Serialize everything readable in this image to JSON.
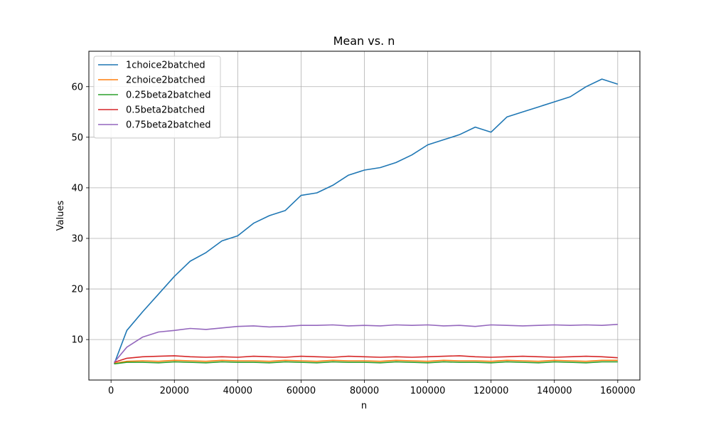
{
  "chart_data": {
    "type": "line",
    "title": "Mean vs. n",
    "xlabel": "n",
    "ylabel": "Values",
    "xlim": [
      -7000,
      167000
    ],
    "ylim": [
      2,
      67
    ],
    "xticks": [
      0,
      20000,
      40000,
      60000,
      80000,
      100000,
      120000,
      140000,
      160000
    ],
    "yticks": [
      10,
      20,
      30,
      40,
      50,
      60
    ],
    "grid": true,
    "legend_position": "top-left",
    "x": [
      1000,
      5000,
      10000,
      15000,
      20000,
      25000,
      30000,
      35000,
      40000,
      45000,
      50000,
      55000,
      60000,
      65000,
      70000,
      75000,
      80000,
      85000,
      90000,
      95000,
      100000,
      105000,
      110000,
      115000,
      120000,
      125000,
      130000,
      135000,
      140000,
      145000,
      150000,
      155000,
      160000
    ],
    "series": [
      {
        "name": "1choice2batched",
        "color": "#1f77b4",
        "values": [
          5.2,
          11.8,
          15.5,
          19.0,
          22.5,
          25.5,
          27.2,
          29.5,
          30.5,
          33.0,
          34.5,
          35.5,
          38.5,
          39.0,
          40.5,
          42.5,
          43.5,
          44.0,
          45.0,
          46.5,
          48.5,
          49.5,
          50.5,
          52.0,
          51.0,
          54.0,
          55.0,
          56.0,
          57.0,
          58.0,
          60.0,
          61.5,
          60.5
        ]
      },
      {
        "name": "2choice2batched",
        "color": "#ff7f0e",
        "values": [
          5.3,
          5.7,
          5.8,
          5.7,
          5.9,
          5.8,
          5.7,
          5.9,
          5.8,
          5.8,
          5.7,
          5.9,
          5.8,
          5.7,
          5.9,
          5.8,
          5.8,
          5.7,
          5.9,
          5.8,
          5.7,
          5.9,
          5.8,
          5.8,
          5.7,
          5.9,
          5.8,
          5.7,
          5.9,
          5.8,
          5.7,
          5.9,
          5.9
        ]
      },
      {
        "name": "0.25beta2batched",
        "color": "#2ca02c",
        "values": [
          5.2,
          5.5,
          5.5,
          5.4,
          5.6,
          5.5,
          5.4,
          5.6,
          5.5,
          5.5,
          5.4,
          5.6,
          5.5,
          5.4,
          5.6,
          5.5,
          5.5,
          5.4,
          5.6,
          5.5,
          5.4,
          5.6,
          5.5,
          5.5,
          5.4,
          5.6,
          5.5,
          5.4,
          5.6,
          5.5,
          5.4,
          5.6,
          5.6
        ]
      },
      {
        "name": "0.5beta2batched",
        "color": "#d62728",
        "values": [
          5.5,
          6.3,
          6.6,
          6.7,
          6.8,
          6.6,
          6.5,
          6.6,
          6.5,
          6.7,
          6.6,
          6.5,
          6.7,
          6.6,
          6.5,
          6.7,
          6.6,
          6.5,
          6.6,
          6.5,
          6.6,
          6.7,
          6.8,
          6.6,
          6.5,
          6.6,
          6.7,
          6.6,
          6.5,
          6.6,
          6.7,
          6.6,
          6.4
        ]
      },
      {
        "name": "0.75beta2batched",
        "color": "#9467bd",
        "values": [
          5.5,
          8.5,
          10.5,
          11.5,
          11.8,
          12.2,
          12.0,
          12.3,
          12.6,
          12.7,
          12.5,
          12.6,
          12.8,
          12.8,
          12.9,
          12.7,
          12.8,
          12.7,
          12.9,
          12.8,
          12.9,
          12.7,
          12.8,
          12.6,
          12.9,
          12.8,
          12.7,
          12.8,
          12.9,
          12.8,
          12.9,
          12.8,
          13.0
        ]
      }
    ]
  }
}
